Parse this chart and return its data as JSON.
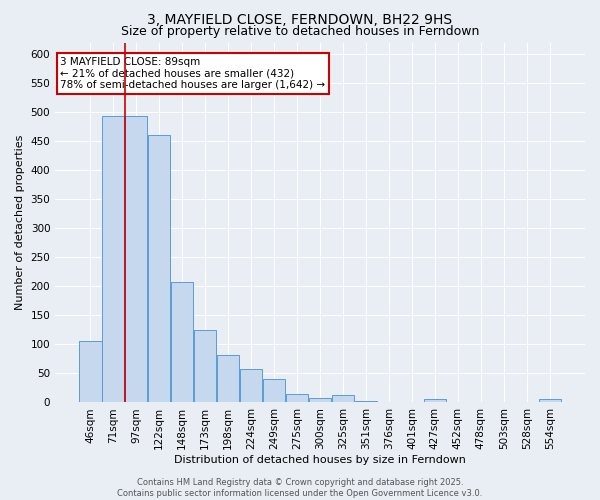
{
  "title1": "3, MAYFIELD CLOSE, FERNDOWN, BH22 9HS",
  "title2": "Size of property relative to detached houses in Ferndown",
  "xlabel": "Distribution of detached houses by size in Ferndown",
  "ylabel": "Number of detached properties",
  "categories": [
    "46sqm",
    "71sqm",
    "97sqm",
    "122sqm",
    "148sqm",
    "173sqm",
    "198sqm",
    "224sqm",
    "249sqm",
    "275sqm",
    "300sqm",
    "325sqm",
    "351sqm",
    "376sqm",
    "401sqm",
    "427sqm",
    "452sqm",
    "478sqm",
    "503sqm",
    "528sqm",
    "554sqm"
  ],
  "values": [
    105,
    493,
    493,
    460,
    207,
    125,
    82,
    58,
    40,
    15,
    8,
    12,
    2,
    0,
    0,
    6,
    0,
    0,
    0,
    0,
    6
  ],
  "bar_color": "#c5d8ed",
  "bar_edge_color": "#5b9bd5",
  "fig_background": "#e8eef4",
  "ax_background": "#e8eef4",
  "grid_color": "#ffffff",
  "annotation_box_text": "3 MAYFIELD CLOSE: 89sqm\n← 21% of detached houses are smaller (432)\n78% of semi-detached houses are larger (1,642) →",
  "annotation_box_edgecolor": "#cc0000",
  "vline_color": "#cc0000",
  "vline_x": 1.5,
  "ylim": [
    0,
    620
  ],
  "yticks": [
    0,
    50,
    100,
    150,
    200,
    250,
    300,
    350,
    400,
    450,
    500,
    550,
    600
  ],
  "footer_text": "Contains HM Land Registry data © Crown copyright and database right 2025.\nContains public sector information licensed under the Open Government Licence v3.0.",
  "title_fontsize": 10,
  "subtitle_fontsize": 9,
  "axis_label_fontsize": 8,
  "tick_fontsize": 7.5,
  "ann_fontsize": 7.5,
  "footer_fontsize": 6
}
